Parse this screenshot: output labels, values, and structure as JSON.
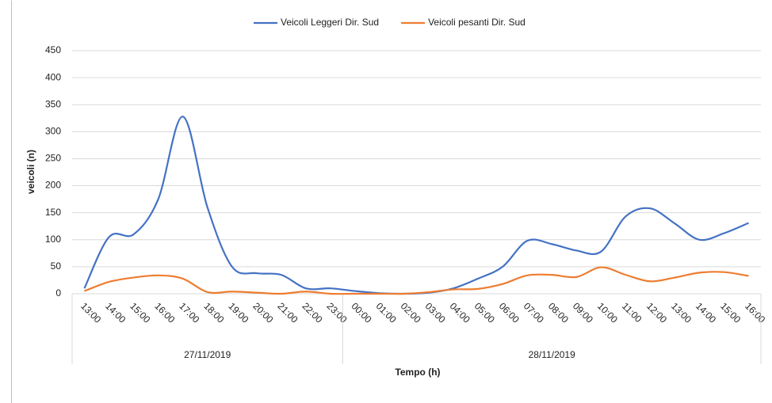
{
  "chart_data": {
    "type": "line",
    "categories": [
      "13:00",
      "14:00",
      "15:00",
      "16:00",
      "17:00",
      "18:00",
      "19:00",
      "20:00",
      "21:00",
      "22:00",
      "23:00",
      "00:00",
      "01:00",
      "02:00",
      "03:00",
      "04:00",
      "05:00",
      "06:00",
      "07:00",
      "08:00",
      "09:00",
      "10:00",
      "11:00",
      "12:00",
      "13:00",
      "14:00",
      "15:00",
      "16:00"
    ],
    "x_groups": [
      {
        "label": "27/11/2019",
        "size": 11
      },
      {
        "label": "28/11/2019",
        "size": 17
      }
    ],
    "series": [
      {
        "name": "Veicoli Leggeri Dir. Sud",
        "color": "#4472c4",
        "values": [
          10,
          105,
          110,
          175,
          328,
          160,
          50,
          38,
          35,
          10,
          10,
          5,
          1,
          0,
          2,
          10,
          28,
          50,
          98,
          92,
          80,
          78,
          143,
          158,
          130,
          100,
          112,
          131
        ]
      },
      {
        "name": "Veicoli pesanti Dir. Sud",
        "color": "#ed7d31",
        "values": [
          5,
          22,
          30,
          34,
          28,
          3,
          4,
          2,
          0,
          4,
          0,
          0,
          0,
          0,
          3,
          8,
          9,
          18,
          34,
          35,
          31,
          49,
          35,
          23,
          30,
          39,
          40,
          33
        ]
      }
    ],
    "xlabel": "Tempo (h)",
    "ylabel": "veicoli (n)",
    "ylim": [
      0,
      450
    ],
    "yticks": [
      0,
      50,
      100,
      150,
      200,
      250,
      300,
      350,
      400,
      450
    ],
    "grid": true,
    "legend": "top",
    "smooth": true
  }
}
